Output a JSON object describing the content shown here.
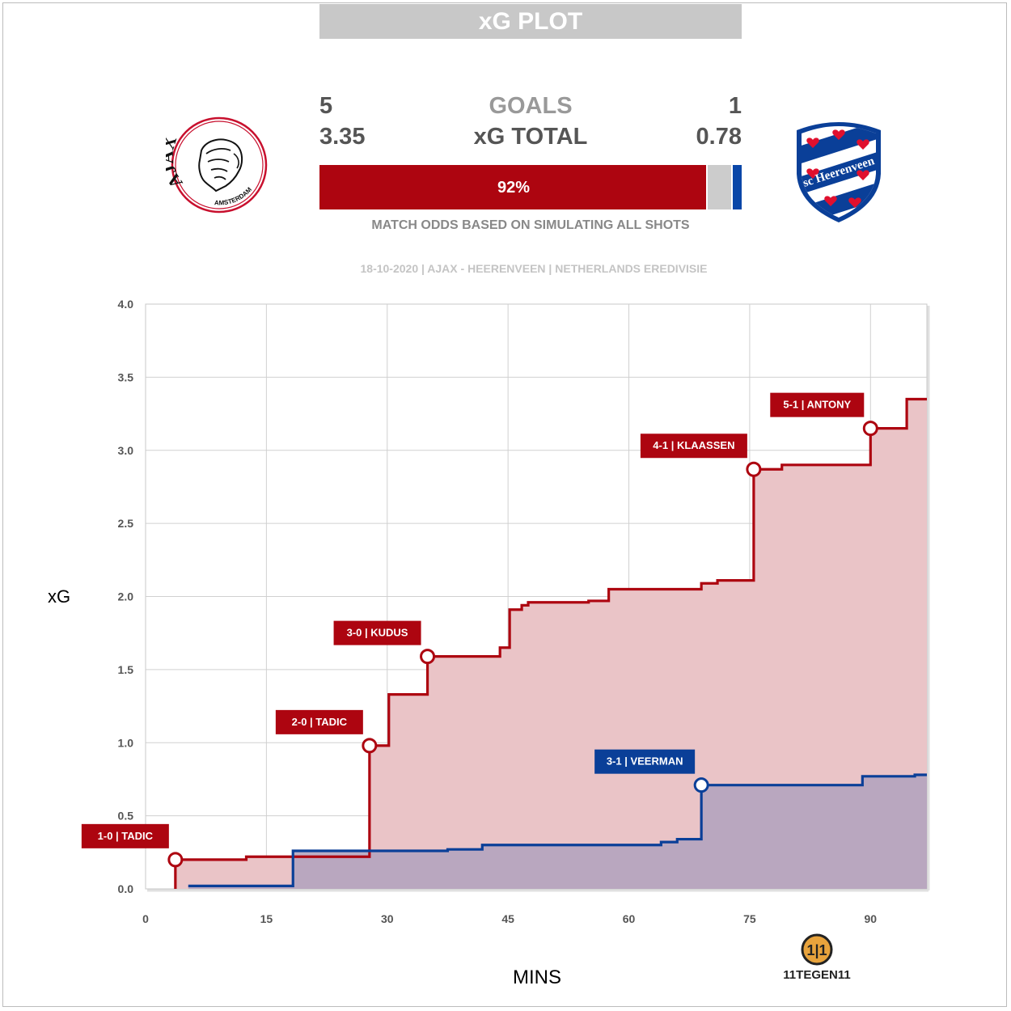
{
  "header": {
    "title": "xG PLOT"
  },
  "summary": {
    "goals_label": "GOALS",
    "xg_label": "xG TOTAL",
    "home": {
      "goals": "5",
      "xg": "3.35"
    },
    "away": {
      "goals": "1",
      "xg": "0.78"
    }
  },
  "odds": {
    "home_win_label": "92%",
    "home": 0.92,
    "draw": 0.06,
    "away": 0.02,
    "note": "MATCH ODDS BASED ON SIMULATING ALL SHOTS"
  },
  "match_info": "18-10-2020 | AJAX - HEERENVEEN | NETHERLANDS EREDIVISIE",
  "logos": {
    "home": {
      "icon": "ajax-crest-icon",
      "text_top": "AJAX",
      "text_bottom": "AMSTERDAM"
    },
    "away": {
      "icon": "heerenveen-crest-icon",
      "text": "sc Heerenveen"
    },
    "brand": {
      "icon": "11tegen11-logo-icon",
      "text": "11TEGEN11"
    }
  },
  "colors": {
    "home": "#ad0510",
    "away": "#0a3f98",
    "home_fill": "#eac4c7",
    "away_fill": "#b0a2bd",
    "grid": "#d0d0d0"
  },
  "chart_data": {
    "type": "line",
    "xlabel": "MINS",
    "ylabel": "xG",
    "xlim": [
      0,
      97
    ],
    "ylim": [
      0,
      4
    ],
    "xticks": [
      0,
      15,
      30,
      45,
      60,
      75,
      90
    ],
    "yticks": [
      "0.0",
      "0.5",
      "1.0",
      "1.5",
      "2.0",
      "2.5",
      "3.0",
      "3.5",
      "4.0"
    ],
    "grid": true,
    "series": [
      {
        "team": "home",
        "step": true,
        "points": [
          [
            3.7,
            0
          ],
          [
            3.7,
            0.2
          ],
          [
            12.5,
            0.22
          ],
          [
            27.8,
            0.98
          ],
          [
            30.2,
            1.33
          ],
          [
            35,
            1.59
          ],
          [
            44,
            1.65
          ],
          [
            45.2,
            1.91
          ],
          [
            46.7,
            1.94
          ],
          [
            47.5,
            1.96
          ],
          [
            55,
            1.97
          ],
          [
            57.5,
            2.05
          ],
          [
            69,
            2.09
          ],
          [
            71,
            2.11
          ],
          [
            75.5,
            2.87
          ],
          [
            79,
            2.9
          ],
          [
            90,
            3.15
          ],
          [
            94.5,
            3.35
          ],
          [
            97,
            3.35
          ]
        ],
        "goals": [
          {
            "x": 3.7,
            "y": 0.2,
            "label": "1-0 | TADIC"
          },
          {
            "x": 27.8,
            "y": 0.98,
            "label": "2-0 | TADIC"
          },
          {
            "x": 35,
            "y": 1.59,
            "label": "3-0 | KUDUS"
          },
          {
            "x": 75.5,
            "y": 2.87,
            "label": "4-1 | KLAASSEN"
          },
          {
            "x": 90,
            "y": 3.15,
            "label": "5-1 | ANTONY"
          }
        ]
      },
      {
        "team": "away",
        "step": true,
        "points": [
          [
            5.3,
            0.02
          ],
          [
            18.3,
            0.26
          ],
          [
            37.5,
            0.27
          ],
          [
            41.8,
            0.3
          ],
          [
            64,
            0.32
          ],
          [
            66,
            0.34
          ],
          [
            69,
            0.71
          ],
          [
            89,
            0.77
          ],
          [
            95.5,
            0.78
          ],
          [
            97,
            0.78
          ]
        ],
        "goals": [
          {
            "x": 69,
            "y": 0.71,
            "label": "3-1 | VEERMAN"
          }
        ]
      }
    ]
  }
}
